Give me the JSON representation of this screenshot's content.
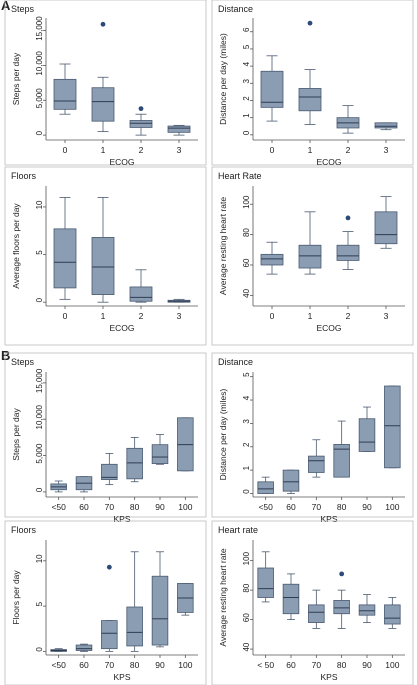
{
  "sections": [
    {
      "label": "A"
    },
    {
      "label": "B"
    }
  ],
  "colors": {
    "box_fill": "#8b9db3",
    "box_stroke": "#4a5a70",
    "median": "#2f3d52",
    "outlier": "#2e4a78",
    "frame": "#bcbcbc",
    "text": "#222222"
  },
  "chart_data": [
    {
      "type": "box",
      "title": "Steps",
      "xlabel": "ECOG",
      "ylabel": "Steps per day",
      "categories": [
        "0",
        "1",
        "2",
        "3"
      ],
      "yticks": [
        "0",
        "5,000",
        "10,000",
        "15,000"
      ],
      "ytick_values": [
        0,
        5000,
        10000,
        15000
      ],
      "ylim": [
        -700,
        16800
      ],
      "boxes": [
        {
          "min": 3000,
          "q1": 3700,
          "median": 4900,
          "q3": 8000,
          "max": 10200,
          "outliers": []
        },
        {
          "min": 500,
          "q1": 2000,
          "median": 4800,
          "q3": 6800,
          "max": 8300,
          "outliers": [
            15900
          ]
        },
        {
          "min": 0,
          "q1": 1100,
          "median": 1700,
          "q3": 2100,
          "max": 3000,
          "outliers": [
            3800
          ]
        },
        {
          "min": 0,
          "q1": 400,
          "median": 1000,
          "q3": 1300,
          "max": 1400,
          "outliers": []
        }
      ]
    },
    {
      "type": "box",
      "title": "Distance",
      "xlabel": "ECOG",
      "ylabel": "Distance per day (miles)",
      "categories": [
        "0",
        "1",
        "2",
        "3"
      ],
      "yticks": [
        "0",
        "1",
        "2",
        "3",
        "4",
        "5",
        "6"
      ],
      "ytick_values": [
        0,
        1,
        2,
        3,
        4,
        5,
        6
      ],
      "ylim": [
        -0.3,
        6.8
      ],
      "boxes": [
        {
          "min": 0.8,
          "q1": 1.6,
          "median": 1.9,
          "q3": 3.7,
          "max": 4.6,
          "outliers": []
        },
        {
          "min": 0.6,
          "q1": 1.4,
          "median": 2.2,
          "q3": 2.7,
          "max": 3.8,
          "outliers": [
            6.5
          ]
        },
        {
          "min": 0.1,
          "q1": 0.4,
          "median": 0.7,
          "q3": 1.0,
          "max": 1.7,
          "outliers": []
        },
        {
          "min": 0.3,
          "q1": 0.4,
          "median": 0.5,
          "q3": 0.7,
          "max": 0.7,
          "outliers": []
        }
      ]
    },
    {
      "type": "box",
      "title": "Floors",
      "xlabel": "ECOG",
      "ylabel": "Average floors per day",
      "categories": [
        "0",
        "1",
        "2",
        "3"
      ],
      "yticks": [
        "0",
        "5",
        "10"
      ],
      "ytick_values": [
        0,
        5,
        10
      ],
      "ylim": [
        -0.4,
        12.2
      ],
      "boxes": [
        {
          "min": 0.3,
          "q1": 1.5,
          "median": 4.2,
          "q3": 7.7,
          "max": 11.0,
          "outliers": []
        },
        {
          "min": 0,
          "q1": 0.8,
          "median": 3.7,
          "q3": 6.8,
          "max": 11.0,
          "outliers": []
        },
        {
          "min": 0,
          "q1": 0.1,
          "median": 0.5,
          "q3": 1.6,
          "max": 3.4,
          "outliers": []
        },
        {
          "min": 0,
          "q1": 0,
          "median": 0.1,
          "q3": 0.2,
          "max": 0.3,
          "outliers": []
        }
      ]
    },
    {
      "type": "box",
      "title": "Heart Rate",
      "xlabel": "ECOG",
      "ylabel": "Average resting heart rate",
      "categories": [
        "0",
        "1",
        "2",
        "3"
      ],
      "yticks": [
        "40",
        "60",
        "80",
        "100"
      ],
      "ytick_values": [
        40,
        60,
        80,
        100
      ],
      "ylim": [
        33,
        112
      ],
      "boxes": [
        {
          "min": 54,
          "q1": 60,
          "median": 64,
          "q3": 67,
          "max": 75,
          "outliers": []
        },
        {
          "min": 54,
          "q1": 58,
          "median": 66,
          "q3": 73,
          "max": 95,
          "outliers": []
        },
        {
          "min": 57,
          "q1": 63,
          "median": 66,
          "q3": 73,
          "max": 82,
          "outliers": [
            91
          ]
        },
        {
          "min": 71,
          "q1": 74,
          "median": 80,
          "q3": 95,
          "max": 105,
          "outliers": []
        }
      ]
    },
    {
      "type": "box",
      "title": "Steps",
      "xlabel": "KPS",
      "ylabel": "Steps per day",
      "categories": [
        "<50",
        "60",
        "70",
        "80",
        "90",
        "100"
      ],
      "yticks": [
        "0",
        "5,000",
        "10,000",
        "15,000"
      ],
      "ytick_values": [
        0,
        5000,
        10000,
        15000
      ],
      "ylim": [
        -700,
        16500
      ],
      "boxes": [
        {
          "min": 0,
          "q1": 300,
          "median": 700,
          "q3": 1100,
          "max": 1500,
          "outliers": []
        },
        {
          "min": 0,
          "q1": 300,
          "median": 1200,
          "q3": 2100,
          "max": 2100,
          "outliers": []
        },
        {
          "min": 1000,
          "q1": 1700,
          "median": 2000,
          "q3": 3800,
          "max": 5300,
          "outliers": []
        },
        {
          "min": 1400,
          "q1": 1800,
          "median": 4000,
          "q3": 6000,
          "max": 7500,
          "outliers": []
        },
        {
          "min": 3800,
          "q1": 3900,
          "median": 4800,
          "q3": 6500,
          "max": 7900,
          "outliers": []
        },
        {
          "min": 2900,
          "q1": 2900,
          "median": 6500,
          "q3": 10200,
          "max": 10200,
          "outliers": []
        }
      ]
    },
    {
      "type": "box",
      "title": "Distance",
      "xlabel": "KPS",
      "ylabel": "Distance per day (miles)",
      "categories": [
        "<50",
        "60",
        "70",
        "80",
        "90",
        "100"
      ],
      "yticks": [
        "0",
        "1",
        "2",
        "3",
        "4",
        "5"
      ],
      "ytick_values": [
        0,
        1,
        2,
        3,
        4,
        5
      ],
      "ylim": [
        -0.15,
        5.2
      ],
      "boxes": [
        {
          "min": 0,
          "q1": 0,
          "median": 0.2,
          "q3": 0.5,
          "max": 0.7,
          "outliers": []
        },
        {
          "min": 0,
          "q1": 0.1,
          "median": 0.5,
          "q3": 1.0,
          "max": 1.0,
          "outliers": []
        },
        {
          "min": 0.7,
          "q1": 0.9,
          "median": 1.4,
          "q3": 1.6,
          "max": 2.3,
          "outliers": []
        },
        {
          "min": 0.7,
          "q1": 0.7,
          "median": 1.9,
          "q3": 2.1,
          "max": 3.1,
          "outliers": []
        },
        {
          "min": 1.8,
          "q1": 1.8,
          "median": 2.2,
          "q3": 3.2,
          "max": 3.7,
          "outliers": []
        },
        {
          "min": 1.1,
          "q1": 1.1,
          "median": 2.9,
          "q3": 4.6,
          "max": 4.6,
          "outliers": []
        }
      ]
    },
    {
      "type": "box",
      "title": "Floors",
      "xlabel": "KPS",
      "ylabel": "Floors per day",
      "categories": [
        "<50",
        "60",
        "70",
        "80",
        "90",
        "100"
      ],
      "yticks": [
        "0",
        "5",
        "10"
      ],
      "ytick_values": [
        0,
        5,
        10
      ],
      "ylim": [
        -0.4,
        12.3
      ],
      "boxes": [
        {
          "min": 0,
          "q1": 0,
          "median": 0.1,
          "q3": 0.2,
          "max": 0.3,
          "outliers": []
        },
        {
          "min": 0,
          "q1": 0.1,
          "median": 0.3,
          "q3": 0.7,
          "max": 0.8,
          "outliers": []
        },
        {
          "min": 0,
          "q1": 0.3,
          "median": 2.0,
          "q3": 3.4,
          "max": 3.4,
          "outliers": [
            9.3
          ]
        },
        {
          "min": 0,
          "q1": 0.6,
          "median": 2.1,
          "q3": 4.9,
          "max": 11.0,
          "outliers": []
        },
        {
          "min": 0.5,
          "q1": 0.7,
          "median": 3.6,
          "q3": 8.3,
          "max": 11.0,
          "outliers": []
        },
        {
          "min": 4.0,
          "q1": 4.3,
          "median": 5.9,
          "q3": 7.5,
          "max": 7.5,
          "outliers": []
        }
      ]
    },
    {
      "type": "box",
      "title": "Heart rate",
      "xlabel": "KPS",
      "ylabel": "Average resting heart rate",
      "categories": [
        "< 50",
        "60",
        "70",
        "80",
        "90",
        "100"
      ],
      "yticks": [
        "40",
        "60",
        "80",
        "100"
      ],
      "ytick_values": [
        40,
        60,
        80,
        100
      ],
      "ylim": [
        36,
        114
      ],
      "boxes": [
        {
          "min": 72,
          "q1": 75,
          "median": 81,
          "q3": 95,
          "max": 106,
          "outliers": []
        },
        {
          "min": 60,
          "q1": 64,
          "median": 75,
          "q3": 84,
          "max": 91,
          "outliers": []
        },
        {
          "min": 54,
          "q1": 58,
          "median": 65,
          "q3": 70,
          "max": 80,
          "outliers": []
        },
        {
          "min": 54,
          "q1": 64,
          "median": 68,
          "q3": 73,
          "max": 80,
          "outliers": [
            91
          ]
        },
        {
          "min": 58,
          "q1": 63,
          "median": 66,
          "q3": 70,
          "max": 77,
          "outliers": []
        },
        {
          "min": 54,
          "q1": 57,
          "median": 61,
          "q3": 70,
          "max": 75,
          "outliers": []
        }
      ]
    }
  ]
}
